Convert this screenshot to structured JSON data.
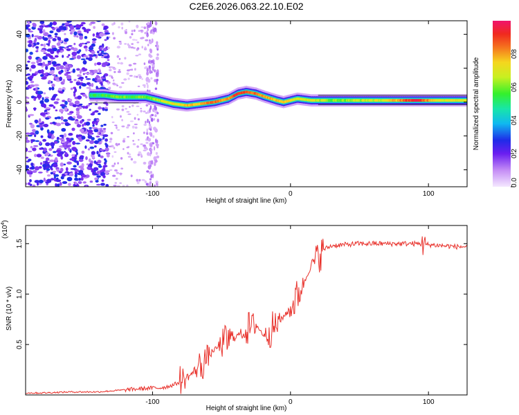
{
  "page": {
    "title": "C2E6.2026.063.22.10.E02"
  },
  "chart_data": [
    {
      "type": "heatmap",
      "title": "C2E6.2026.063.22.10.E02",
      "xlabel": "Height of straight line (km)",
      "ylabel": "Frequency (Hz)",
      "xlim": [
        -192,
        128
      ],
      "ylim": [
        -50,
        48
      ],
      "x_ticks": [
        -100,
        0,
        100
      ],
      "x_tick_labels": [
        "-100",
        "0",
        "100"
      ],
      "y_ticks": [
        -40,
        -20,
        0,
        20,
        40
      ],
      "y_tick_labels": [
        "-40",
        "-20",
        "0",
        "20",
        "40"
      ],
      "colorbar": {
        "label": "Normalized spectral amplitude",
        "range": [
          0,
          1
        ],
        "ticks": [
          0.0,
          0.2,
          0.4,
          0.6,
          0.8
        ],
        "tick_labels": [
          "0.0",
          "0.2",
          "0.4",
          "0.6",
          "0.8"
        ]
      },
      "ridge": {
        "description_series": "dominant frequency track",
        "x": [
          -145,
          -135,
          -125,
          -115,
          -105,
          -95,
          -85,
          -75,
          -65,
          -55,
          -45,
          -38,
          -32,
          -25,
          -18,
          -10,
          -5,
          0,
          5,
          15,
          30,
          50,
          70,
          90,
          110,
          128
        ],
        "y": [
          4,
          4,
          3,
          3,
          3,
          1,
          -1,
          -2,
          -1,
          0,
          2,
          5,
          6,
          5,
          3,
          1,
          0,
          1,
          2,
          1,
          1,
          1,
          1,
          1,
          1,
          1
        ],
        "amplitude": [
          0.5,
          0.55,
          0.6,
          0.55,
          0.6,
          0.65,
          0.7,
          0.75,
          0.8,
          0.85,
          0.8,
          0.95,
          0.9,
          0.85,
          0.8,
          0.75,
          0.8,
          0.7,
          0.7,
          0.7,
          0.6,
          0.65,
          0.7,
          0.95,
          0.7,
          0.7
        ]
      }
    },
    {
      "type": "line",
      "xlabel": "Height of straight line (km)",
      "ylabel": "SNR (10 * v/v)",
      "multiplier_label": "(x10",
      "multiplier_exp": "4",
      "multiplier_close": ")",
      "xlim": [
        -192,
        128
      ],
      "ylim": [
        0,
        1.68
      ],
      "x_ticks": [
        -100,
        0,
        100
      ],
      "x_tick_labels": [
        "-100",
        "0",
        "100"
      ],
      "y_ticks": [
        0.5,
        1.0,
        1.5
      ],
      "y_tick_labels": [
        "0.5",
        "1.0",
        "1.5"
      ],
      "series": [
        {
          "name": "SNR",
          "color": "#e8302a",
          "x": [
            -192,
            -180,
            -160,
            -140,
            -130,
            -120,
            -110,
            -100,
            -95,
            -90,
            -85,
            -80,
            -75,
            -70,
            -65,
            -60,
            -55,
            -50,
            -45,
            -40,
            -35,
            -30,
            -25,
            -20,
            -15,
            -10,
            -5,
            0,
            5,
            10,
            15,
            20,
            25,
            30,
            40,
            50,
            60,
            70,
            80,
            90,
            100,
            110,
            120,
            128
          ],
          "y": [
            0.02,
            0.02,
            0.03,
            0.03,
            0.04,
            0.05,
            0.06,
            0.07,
            0.07,
            0.08,
            0.1,
            0.13,
            0.17,
            0.23,
            0.3,
            0.38,
            0.45,
            0.5,
            0.55,
            0.58,
            0.62,
            0.66,
            0.7,
            0.6,
            0.62,
            0.7,
            0.78,
            0.85,
            0.98,
            1.12,
            1.28,
            1.38,
            1.45,
            1.48,
            1.49,
            1.5,
            1.5,
            1.5,
            1.5,
            1.5,
            1.49,
            1.48,
            1.47,
            1.47
          ]
        }
      ]
    }
  ]
}
